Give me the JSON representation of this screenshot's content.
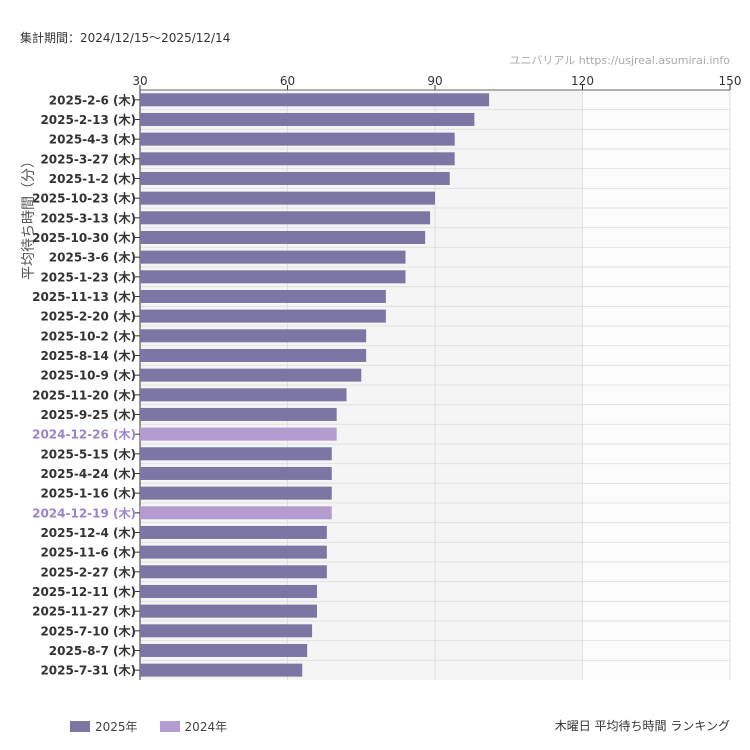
{
  "header": {
    "period": "集計期間：2024/12/15〜2025/12/14",
    "source": "ユニバリアル  https://usjreal.asumirai.info"
  },
  "footer": {
    "title": "木曜日 平均待ち時間 ランキング"
  },
  "chart_data": {
    "type": "bar",
    "orientation": "horizontal",
    "ylabel": "平均待ち時間（分）",
    "xlim": [
      30,
      150
    ],
    "xticks": [
      30,
      60,
      90,
      120,
      150
    ],
    "grid": true,
    "legend_position": "bottom-left",
    "legend": [
      {
        "name": "2025年",
        "color": "#7b76a3"
      },
      {
        "name": "2024年",
        "color": "#b39dd0"
      }
    ],
    "categories": [
      "2025-2-6 (木)",
      "2025-2-13 (木)",
      "2025-4-3 (木)",
      "2025-3-27 (木)",
      "2025-1-2 (木)",
      "2025-10-23 (木)",
      "2025-3-13 (木)",
      "2025-10-30 (木)",
      "2025-3-6 (木)",
      "2025-1-23 (木)",
      "2025-11-13 (木)",
      "2025-2-20 (木)",
      "2025-10-2 (木)",
      "2025-8-14 (木)",
      "2025-10-9 (木)",
      "2025-11-20 (木)",
      "2025-9-25 (木)",
      "2024-12-26 (木)",
      "2025-5-15 (木)",
      "2025-4-24 (木)",
      "2025-1-16 (木)",
      "2024-12-19 (木)",
      "2025-12-4 (木)",
      "2025-11-6 (木)",
      "2025-2-27 (木)",
      "2025-12-11 (木)",
      "2025-11-27 (木)",
      "2025-7-10 (木)",
      "2025-8-7 (木)",
      "2025-7-31 (木)"
    ],
    "values": [
      101,
      98,
      94,
      94,
      93,
      90,
      89,
      88,
      84,
      84,
      80,
      80,
      76,
      76,
      75,
      72,
      70,
      70,
      69,
      69,
      69,
      69,
      68,
      68,
      68,
      66,
      66,
      65,
      64,
      63
    ],
    "year": [
      "2025",
      "2025",
      "2025",
      "2025",
      "2025",
      "2025",
      "2025",
      "2025",
      "2025",
      "2025",
      "2025",
      "2025",
      "2025",
      "2025",
      "2025",
      "2025",
      "2025",
      "2024",
      "2025",
      "2025",
      "2025",
      "2024",
      "2025",
      "2025",
      "2025",
      "2025",
      "2025",
      "2025",
      "2025",
      "2025"
    ]
  }
}
